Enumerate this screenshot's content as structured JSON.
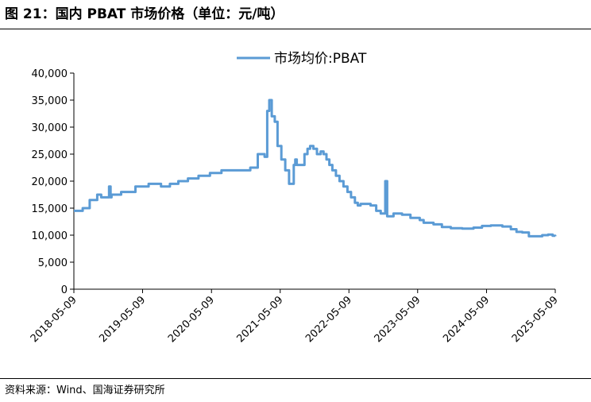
{
  "figure": {
    "title": "图 21：国内 PBAT 市场价格（单位：元/吨）",
    "source": "资料来源：Wind、国海证券研究所"
  },
  "colors": {
    "series": "#5b9bd5",
    "axis": "#000000"
  },
  "chart_data": {
    "type": "line",
    "title": "",
    "xlabel": "",
    "ylabel": "",
    "legend": "top-center",
    "grid": false,
    "ylim": [
      0,
      40000
    ],
    "xlim": [
      "2018-05-09",
      "2025-05-09"
    ],
    "y_tick_labels": [
      "0",
      "5,000",
      "10,000",
      "15,000",
      "20,000",
      "25,000",
      "30,000",
      "35,000",
      "40,000"
    ],
    "x_tick_labels": [
      "2018-05-09",
      "2019-05-09",
      "2020-05-09",
      "2021-05-09",
      "2022-05-09",
      "2023-05-09",
      "2024-05-09",
      "2025-05-09"
    ],
    "series": [
      {
        "name": "市场均价:PBAT",
        "step": true,
        "points": [
          [
            "2018-05-09",
            14500
          ],
          [
            "2018-06-25",
            15000
          ],
          [
            "2018-08-01",
            16500
          ],
          [
            "2018-09-10",
            17500
          ],
          [
            "2018-10-01",
            17000
          ],
          [
            "2018-11-12",
            19000
          ],
          [
            "2018-11-20",
            17000
          ],
          [
            "2018-11-25",
            17500
          ],
          [
            "2019-01-15",
            18000
          ],
          [
            "2019-04-01",
            19000
          ],
          [
            "2019-06-10",
            19500
          ],
          [
            "2019-08-15",
            19000
          ],
          [
            "2019-10-01",
            19500
          ],
          [
            "2019-11-15",
            20000
          ],
          [
            "2020-01-05",
            20500
          ],
          [
            "2020-03-01",
            21000
          ],
          [
            "2020-05-01",
            21500
          ],
          [
            "2020-07-01",
            22000
          ],
          [
            "2020-12-01",
            22500
          ],
          [
            "2021-01-10",
            25000
          ],
          [
            "2021-02-15",
            24500
          ],
          [
            "2021-03-01",
            33000
          ],
          [
            "2021-03-12",
            35000
          ],
          [
            "2021-03-25",
            32000
          ],
          [
            "2021-04-10",
            31000
          ],
          [
            "2021-04-25",
            26500
          ],
          [
            "2021-05-15",
            24000
          ],
          [
            "2021-06-05",
            22000
          ],
          [
            "2021-06-25",
            19500
          ],
          [
            "2021-07-20",
            23000
          ],
          [
            "2021-07-28",
            24000
          ],
          [
            "2021-08-05",
            23000
          ],
          [
            "2021-09-15",
            25000
          ],
          [
            "2021-10-01",
            26000
          ],
          [
            "2021-10-15",
            26500
          ],
          [
            "2021-11-01",
            26000
          ],
          [
            "2021-11-20",
            25000
          ],
          [
            "2021-12-10",
            25500
          ],
          [
            "2021-12-25",
            25000
          ],
          [
            "2022-01-10",
            24000
          ],
          [
            "2022-01-25",
            23000
          ],
          [
            "2022-02-10",
            22000
          ],
          [
            "2022-03-01",
            21000
          ],
          [
            "2022-03-20",
            20000
          ],
          [
            "2022-04-10",
            19000
          ],
          [
            "2022-05-01",
            18000
          ],
          [
            "2022-05-20",
            17000
          ],
          [
            "2022-06-10",
            16000
          ],
          [
            "2022-06-25",
            15500
          ],
          [
            "2022-07-10",
            15800
          ],
          [
            "2022-09-01",
            15500
          ],
          [
            "2022-10-01",
            14500
          ],
          [
            "2022-10-25",
            14000
          ],
          [
            "2022-11-18",
            20000
          ],
          [
            "2022-11-28",
            13500
          ],
          [
            "2023-01-01",
            14000
          ],
          [
            "2023-02-15",
            13800
          ],
          [
            "2023-04-01",
            13200
          ],
          [
            "2023-05-20",
            12800
          ],
          [
            "2023-06-10",
            12300
          ],
          [
            "2023-08-01",
            12000
          ],
          [
            "2023-09-15",
            11500
          ],
          [
            "2023-11-01",
            11300
          ],
          [
            "2024-01-01",
            11200
          ],
          [
            "2024-03-01",
            11400
          ],
          [
            "2024-04-15",
            11700
          ],
          [
            "2024-06-01",
            11800
          ],
          [
            "2024-08-01",
            11600
          ],
          [
            "2024-09-15",
            11100
          ],
          [
            "2024-10-15",
            10600
          ],
          [
            "2024-11-15",
            10500
          ],
          [
            "2024-12-20",
            9800
          ],
          [
            "2025-03-01",
            10000
          ],
          [
            "2025-04-01",
            10100
          ],
          [
            "2025-04-25",
            9900
          ],
          [
            "2025-05-09",
            9800
          ]
        ]
      }
    ]
  }
}
